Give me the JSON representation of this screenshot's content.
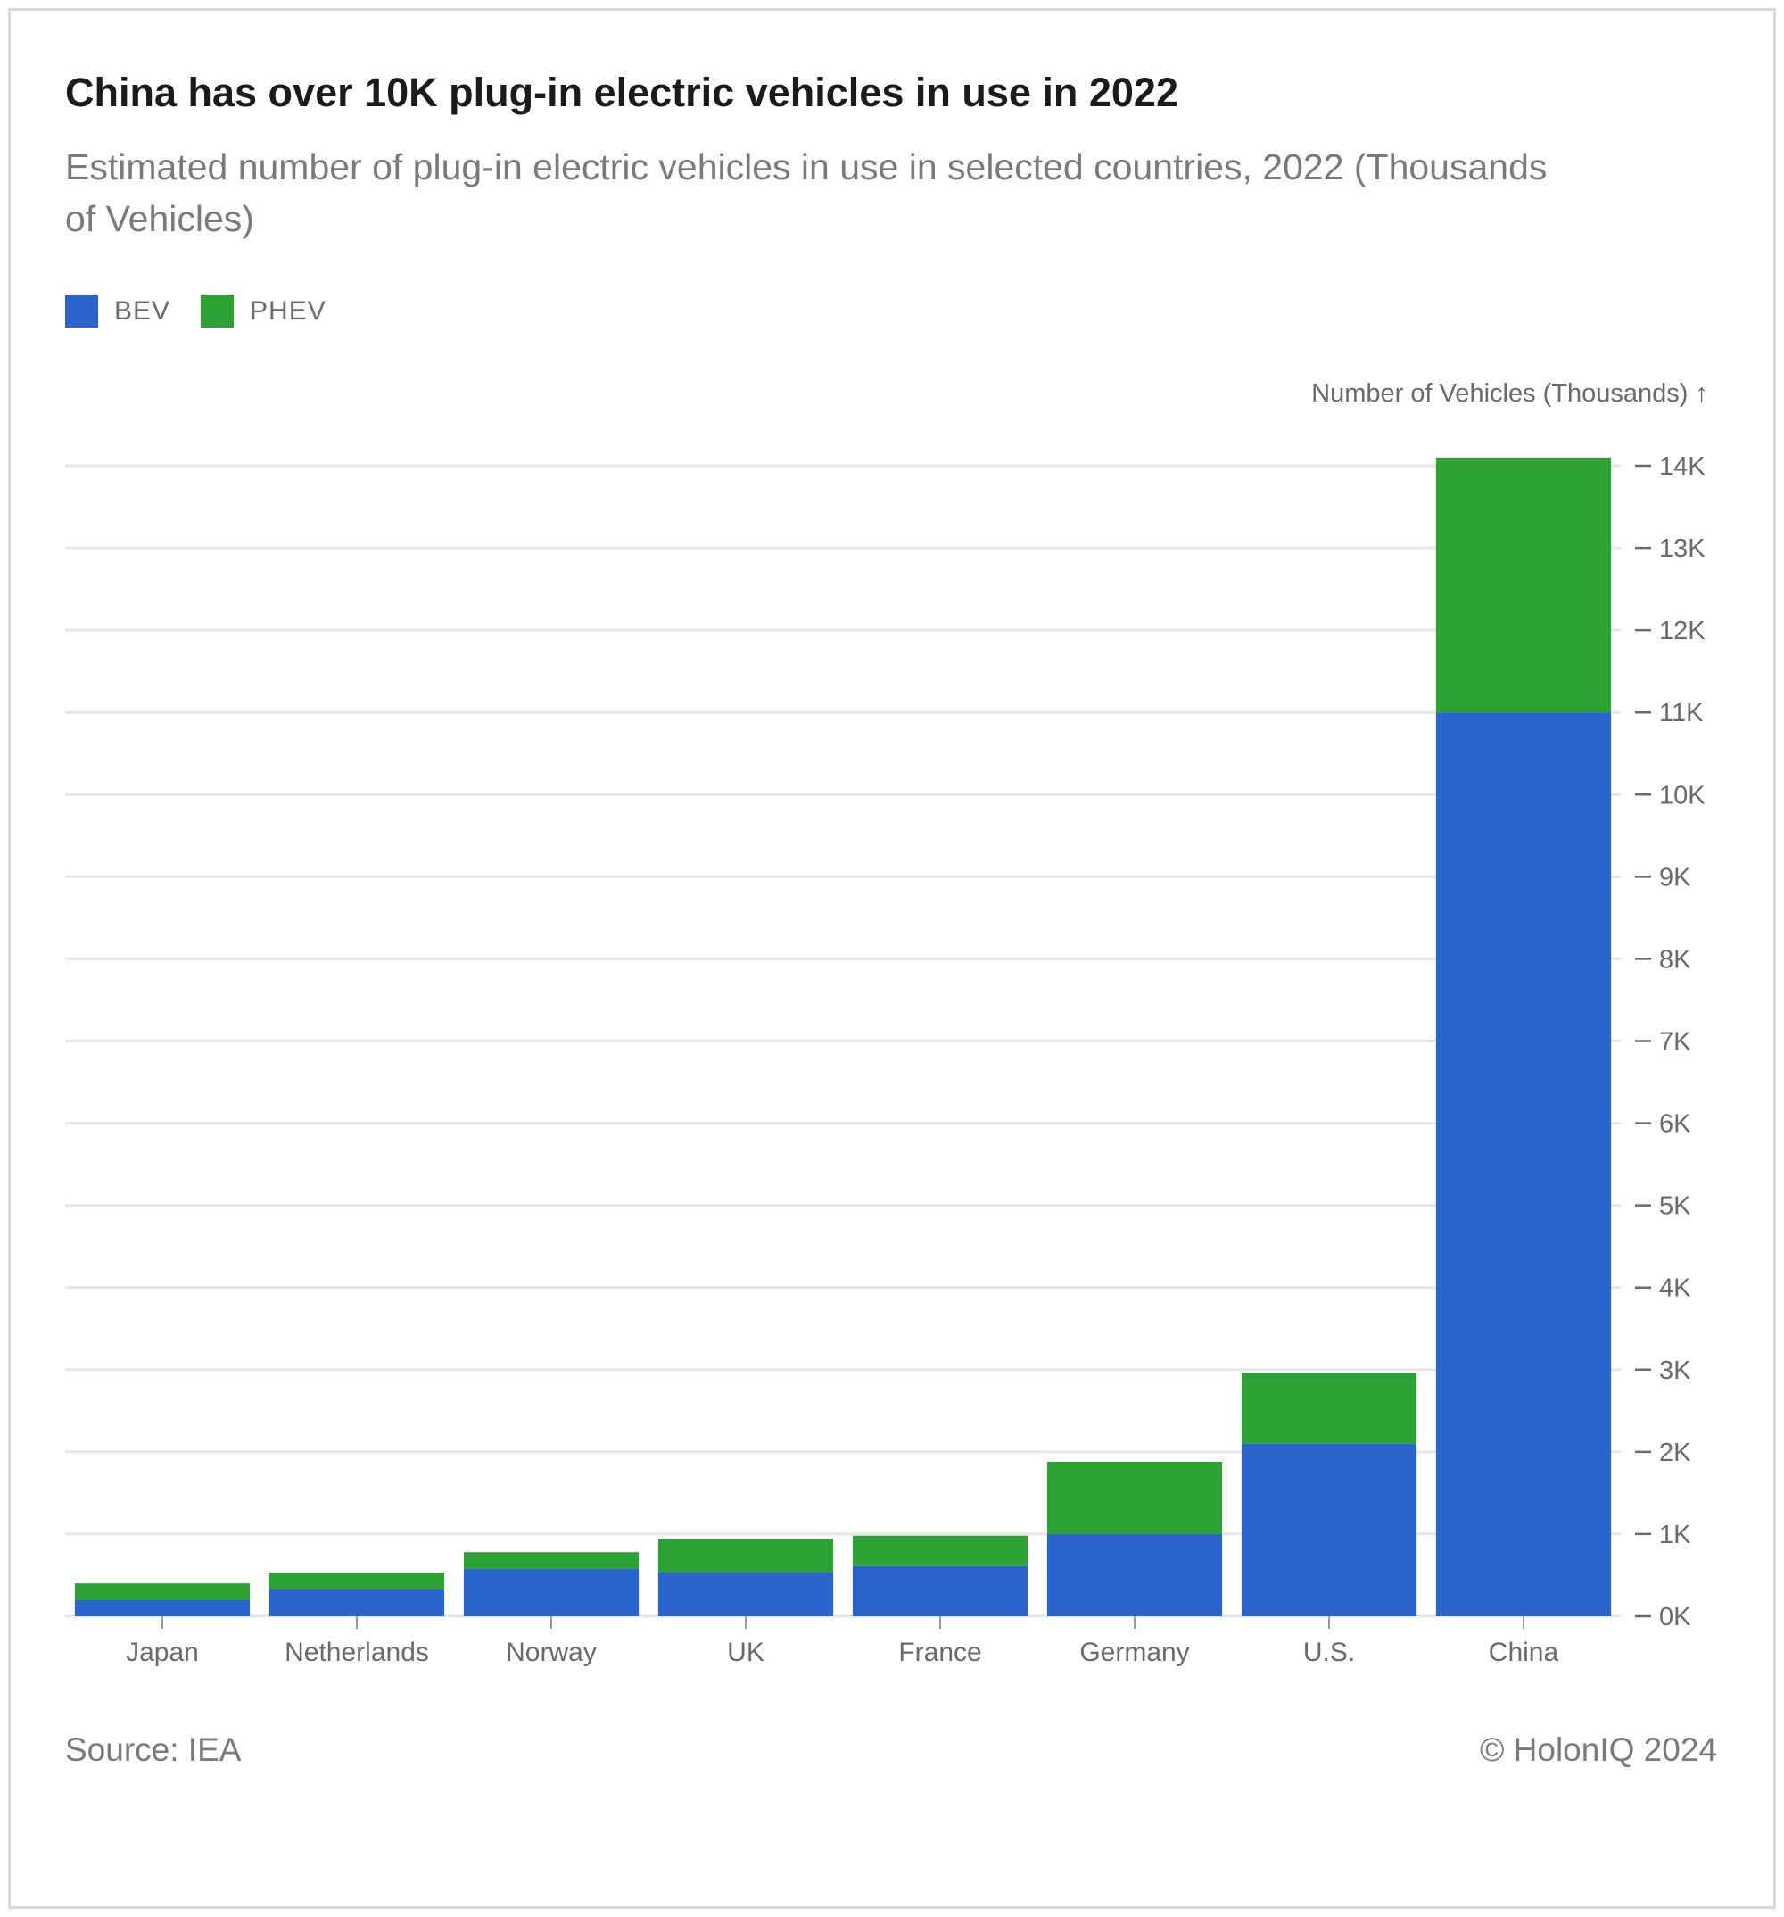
{
  "title": "China has over 10K plug-in electric vehicles in use in 2022",
  "subtitle": "Estimated number of plug-in electric vehicles in use in selected countries, 2022 (Thousands of Vehicles)",
  "source": "Source: IEA",
  "copyright": "© HolonIQ 2024",
  "colors": {
    "BEV": "#2a64cc",
    "PHEV": "#2ba233",
    "grid": "#e6e6e6",
    "text": "#6a6a6a"
  },
  "chart_data": {
    "type": "bar",
    "stacked": true,
    "categories": [
      "Japan",
      "Netherlands",
      "Norway",
      "UK",
      "France",
      "Germany",
      "U.S.",
      "China"
    ],
    "series": [
      {
        "name": "BEV",
        "values": [
          200,
          330,
          580,
          540,
          610,
          1000,
          2100,
          11000
        ]
      },
      {
        "name": "PHEV",
        "values": [
          200,
          200,
          200,
          400,
          370,
          880,
          860,
          3100
        ]
      }
    ],
    "ylabel": "Number of Vehicles (Thousands) ↑",
    "ylim": [
      0,
      14000
    ],
    "y_ticks": [
      0,
      1000,
      2000,
      3000,
      4000,
      5000,
      6000,
      7000,
      8000,
      9000,
      10000,
      11000,
      12000,
      13000,
      14000
    ],
    "y_tick_labels": [
      "0K",
      "1K",
      "2K",
      "3K",
      "4K",
      "5K",
      "6K",
      "7K",
      "8K",
      "9K",
      "10K",
      "11K",
      "12K",
      "13K",
      "14K"
    ],
    "grid": true,
    "legend": "top-left",
    "y_axis_position": "right"
  }
}
